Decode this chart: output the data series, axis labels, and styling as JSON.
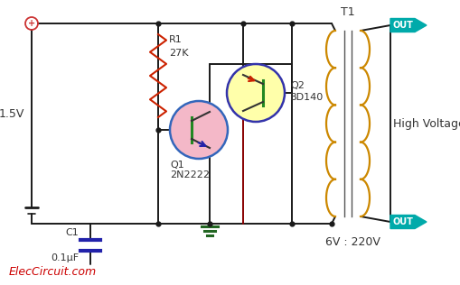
{
  "bg_color": "#ffffff",
  "wire_color": "#1a1a1a",
  "resistor_color": "#cc2200",
  "transistor_q1_fill": "#f4b8c8",
  "transistor_q1_edge": "#3366bb",
  "transistor_q2_fill": "#ffffaa",
  "transistor_q2_edge": "#3333aa",
  "capacitor_color": "#2222aa",
  "ground_color": "#226622",
  "transformer_color": "#cc8800",
  "out_box_color": "#00aaaa",
  "out_text_color": "#ffffff",
  "label_color": "#333333",
  "elec_color": "#cc0000",
  "v_label": "1.5V",
  "r_label1": "R1",
  "r_label2": "27K",
  "q1_label1": "Q1",
  "q1_label2": "2N2222",
  "q2_label1": "Q2",
  "q2_label2": "BD140",
  "c_label1": "C1",
  "c_label2": "0.1μF",
  "t_label": "T1",
  "hv_label": "High Voltage",
  "vout_label": "6V : 220V",
  "site_label": "ElecCircuit.com",
  "out_label": "OUT",
  "plus_color": "#cc3333",
  "q1_arrow_color": "#2222aa",
  "q2_arrow_color": "#cc2200",
  "q1_line_color": "#228822",
  "q2_line_color": "#228822",
  "dark_red_wire": "#880000"
}
